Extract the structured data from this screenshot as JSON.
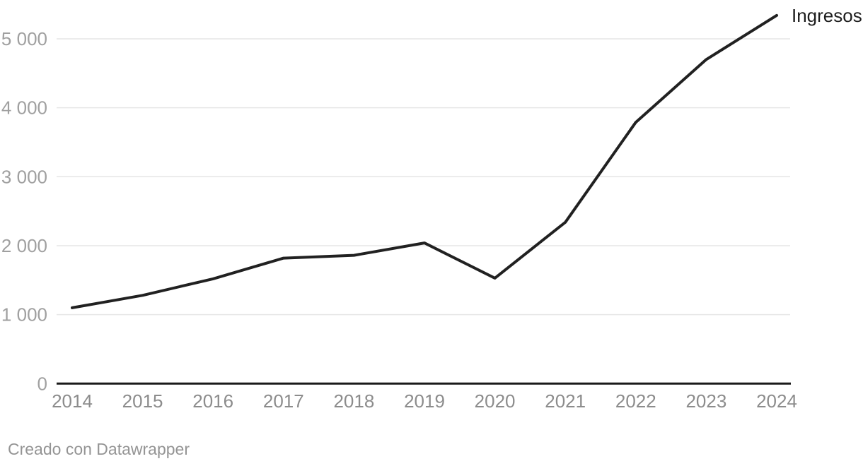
{
  "chart_data": {
    "type": "line",
    "title": "",
    "xlabel": "",
    "ylabel": "",
    "x": [
      2014,
      2015,
      2016,
      2017,
      2018,
      2019,
      2020,
      2021,
      2022,
      2023,
      2024
    ],
    "series": [
      {
        "name": "Ingresos",
        "values": [
          1100,
          1280,
          1520,
          1820,
          1860,
          2040,
          1530,
          2340,
          3790,
          4700,
          5340
        ]
      }
    ],
    "x_tick_labels": [
      "2014",
      "2015",
      "2016",
      "2017",
      "2018",
      "2019",
      "2020",
      "2021",
      "2022",
      "2023",
      "2024"
    ],
    "y_ticks": [
      {
        "value": 0,
        "label": "0"
      },
      {
        "value": 1000,
        "label": "1 000"
      },
      {
        "value": 2000,
        "label": "2 000"
      },
      {
        "value": 3000,
        "label": "3 000"
      },
      {
        "value": 4000,
        "label": "4 000"
      },
      {
        "value": 5000,
        "label": "5 000"
      }
    ],
    "xlim": [
      2014,
      2024
    ],
    "ylim": [
      0,
      5560
    ],
    "grid": true,
    "legend_position": "end-of-line",
    "colors": {
      "background": "#ffffff",
      "line": "#212121",
      "axis_line": "#1a1a1a",
      "gridline": "#e6e6e6",
      "y_tick_label": "#a0a0a0",
      "x_tick_label": "#8c8c8c",
      "series_label": "#1d1d1d",
      "credit_text": "#949494"
    }
  },
  "footer": {
    "credit": "Creado con Datawrapper"
  }
}
